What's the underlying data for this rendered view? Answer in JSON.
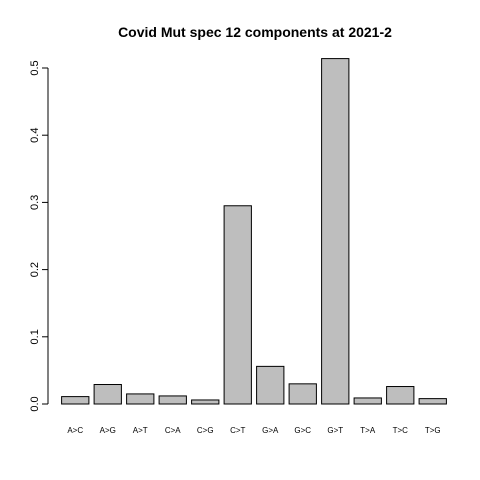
{
  "chart_data": {
    "type": "bar",
    "title": "Covid Mut spec 12 components at 2021-2",
    "xlabel": "",
    "ylabel": "",
    "categories": [
      "A>C",
      "A>G",
      "A>T",
      "C>A",
      "C>G",
      "C>T",
      "G>A",
      "G>C",
      "G>T",
      "T>A",
      "T>C",
      "T>G"
    ],
    "values": [
      0.011,
      0.029,
      0.015,
      0.012,
      0.006,
      0.295,
      0.056,
      0.03,
      0.514,
      0.009,
      0.026,
      0.008
    ],
    "ylim": [
      0,
      0.5
    ],
    "yticks": [
      "0.0",
      "0.1",
      "0.2",
      "0.3",
      "0.4",
      "0.5"
    ],
    "bar_color": "#bebebe",
    "grid": false,
    "legend": "none"
  }
}
